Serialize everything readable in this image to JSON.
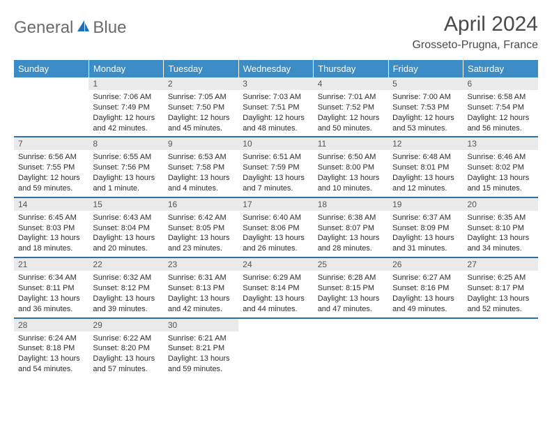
{
  "logo": {
    "textA": "General",
    "textB": "Blue"
  },
  "title": "April 2024",
  "location": "Grosseto-Prugna, France",
  "header_bg": "#3b8bc4",
  "row_divider": "#2f6fa3",
  "daynum_bg": "#eaeaea",
  "weekdays": [
    "Sunday",
    "Monday",
    "Tuesday",
    "Wednesday",
    "Thursday",
    "Friday",
    "Saturday"
  ],
  "weeks": [
    [
      null,
      {
        "n": "1",
        "sr": "Sunrise: 7:06 AM",
        "ss": "Sunset: 7:49 PM",
        "d1": "Daylight: 12 hours",
        "d2": "and 42 minutes."
      },
      {
        "n": "2",
        "sr": "Sunrise: 7:05 AM",
        "ss": "Sunset: 7:50 PM",
        "d1": "Daylight: 12 hours",
        "d2": "and 45 minutes."
      },
      {
        "n": "3",
        "sr": "Sunrise: 7:03 AM",
        "ss": "Sunset: 7:51 PM",
        "d1": "Daylight: 12 hours",
        "d2": "and 48 minutes."
      },
      {
        "n": "4",
        "sr": "Sunrise: 7:01 AM",
        "ss": "Sunset: 7:52 PM",
        "d1": "Daylight: 12 hours",
        "d2": "and 50 minutes."
      },
      {
        "n": "5",
        "sr": "Sunrise: 7:00 AM",
        "ss": "Sunset: 7:53 PM",
        "d1": "Daylight: 12 hours",
        "d2": "and 53 minutes."
      },
      {
        "n": "6",
        "sr": "Sunrise: 6:58 AM",
        "ss": "Sunset: 7:54 PM",
        "d1": "Daylight: 12 hours",
        "d2": "and 56 minutes."
      }
    ],
    [
      {
        "n": "7",
        "sr": "Sunrise: 6:56 AM",
        "ss": "Sunset: 7:55 PM",
        "d1": "Daylight: 12 hours",
        "d2": "and 59 minutes."
      },
      {
        "n": "8",
        "sr": "Sunrise: 6:55 AM",
        "ss": "Sunset: 7:56 PM",
        "d1": "Daylight: 13 hours",
        "d2": "and 1 minute."
      },
      {
        "n": "9",
        "sr": "Sunrise: 6:53 AM",
        "ss": "Sunset: 7:58 PM",
        "d1": "Daylight: 13 hours",
        "d2": "and 4 minutes."
      },
      {
        "n": "10",
        "sr": "Sunrise: 6:51 AM",
        "ss": "Sunset: 7:59 PM",
        "d1": "Daylight: 13 hours",
        "d2": "and 7 minutes."
      },
      {
        "n": "11",
        "sr": "Sunrise: 6:50 AM",
        "ss": "Sunset: 8:00 PM",
        "d1": "Daylight: 13 hours",
        "d2": "and 10 minutes."
      },
      {
        "n": "12",
        "sr": "Sunrise: 6:48 AM",
        "ss": "Sunset: 8:01 PM",
        "d1": "Daylight: 13 hours",
        "d2": "and 12 minutes."
      },
      {
        "n": "13",
        "sr": "Sunrise: 6:46 AM",
        "ss": "Sunset: 8:02 PM",
        "d1": "Daylight: 13 hours",
        "d2": "and 15 minutes."
      }
    ],
    [
      {
        "n": "14",
        "sr": "Sunrise: 6:45 AM",
        "ss": "Sunset: 8:03 PM",
        "d1": "Daylight: 13 hours",
        "d2": "and 18 minutes."
      },
      {
        "n": "15",
        "sr": "Sunrise: 6:43 AM",
        "ss": "Sunset: 8:04 PM",
        "d1": "Daylight: 13 hours",
        "d2": "and 20 minutes."
      },
      {
        "n": "16",
        "sr": "Sunrise: 6:42 AM",
        "ss": "Sunset: 8:05 PM",
        "d1": "Daylight: 13 hours",
        "d2": "and 23 minutes."
      },
      {
        "n": "17",
        "sr": "Sunrise: 6:40 AM",
        "ss": "Sunset: 8:06 PM",
        "d1": "Daylight: 13 hours",
        "d2": "and 26 minutes."
      },
      {
        "n": "18",
        "sr": "Sunrise: 6:38 AM",
        "ss": "Sunset: 8:07 PM",
        "d1": "Daylight: 13 hours",
        "d2": "and 28 minutes."
      },
      {
        "n": "19",
        "sr": "Sunrise: 6:37 AM",
        "ss": "Sunset: 8:09 PM",
        "d1": "Daylight: 13 hours",
        "d2": "and 31 minutes."
      },
      {
        "n": "20",
        "sr": "Sunrise: 6:35 AM",
        "ss": "Sunset: 8:10 PM",
        "d1": "Daylight: 13 hours",
        "d2": "and 34 minutes."
      }
    ],
    [
      {
        "n": "21",
        "sr": "Sunrise: 6:34 AM",
        "ss": "Sunset: 8:11 PM",
        "d1": "Daylight: 13 hours",
        "d2": "and 36 minutes."
      },
      {
        "n": "22",
        "sr": "Sunrise: 6:32 AM",
        "ss": "Sunset: 8:12 PM",
        "d1": "Daylight: 13 hours",
        "d2": "and 39 minutes."
      },
      {
        "n": "23",
        "sr": "Sunrise: 6:31 AM",
        "ss": "Sunset: 8:13 PM",
        "d1": "Daylight: 13 hours",
        "d2": "and 42 minutes."
      },
      {
        "n": "24",
        "sr": "Sunrise: 6:29 AM",
        "ss": "Sunset: 8:14 PM",
        "d1": "Daylight: 13 hours",
        "d2": "and 44 minutes."
      },
      {
        "n": "25",
        "sr": "Sunrise: 6:28 AM",
        "ss": "Sunset: 8:15 PM",
        "d1": "Daylight: 13 hours",
        "d2": "and 47 minutes."
      },
      {
        "n": "26",
        "sr": "Sunrise: 6:27 AM",
        "ss": "Sunset: 8:16 PM",
        "d1": "Daylight: 13 hours",
        "d2": "and 49 minutes."
      },
      {
        "n": "27",
        "sr": "Sunrise: 6:25 AM",
        "ss": "Sunset: 8:17 PM",
        "d1": "Daylight: 13 hours",
        "d2": "and 52 minutes."
      }
    ],
    [
      {
        "n": "28",
        "sr": "Sunrise: 6:24 AM",
        "ss": "Sunset: 8:18 PM",
        "d1": "Daylight: 13 hours",
        "d2": "and 54 minutes."
      },
      {
        "n": "29",
        "sr": "Sunrise: 6:22 AM",
        "ss": "Sunset: 8:20 PM",
        "d1": "Daylight: 13 hours",
        "d2": "and 57 minutes."
      },
      {
        "n": "30",
        "sr": "Sunrise: 6:21 AM",
        "ss": "Sunset: 8:21 PM",
        "d1": "Daylight: 13 hours",
        "d2": "and 59 minutes."
      },
      null,
      null,
      null,
      null
    ]
  ]
}
